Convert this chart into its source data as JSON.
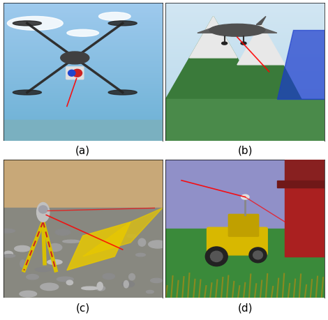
{
  "figure_width": 4.7,
  "figure_height": 4.6,
  "dpi": 100,
  "labels": [
    "(a)",
    "(b)",
    "(c)",
    "(d)"
  ],
  "label_fontsize": 11,
  "background_color": "#ffffff",
  "border_color": "#000000",
  "border_linewidth": 0.5
}
